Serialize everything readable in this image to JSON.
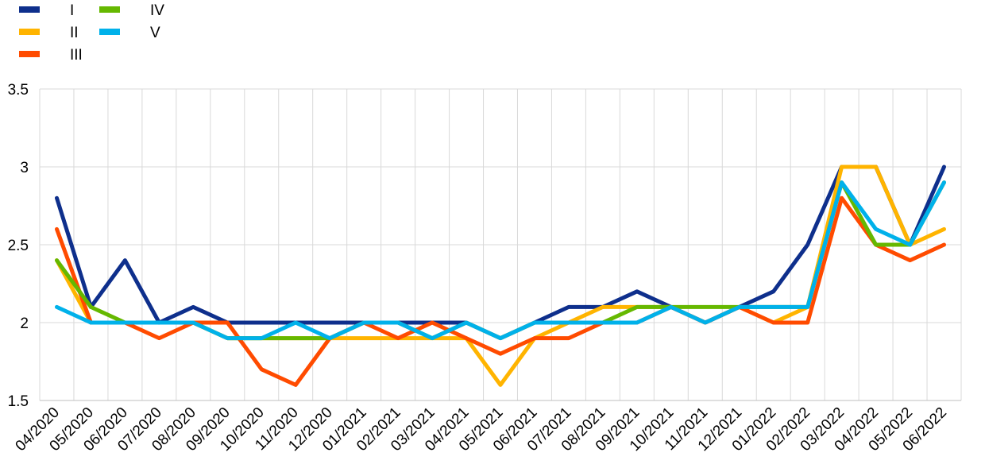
{
  "chart_data": {
    "type": "line",
    "title": "",
    "xlabel": "",
    "ylabel": "",
    "ylim": [
      1.5,
      3.5
    ],
    "yticks": [
      "1.5",
      "2",
      "2.5",
      "3",
      "3.5"
    ],
    "ytick_values": [
      1.5,
      2,
      2.5,
      3,
      3.5
    ],
    "grid": true,
    "legend_position": "top-left",
    "categories": [
      "04/2020",
      "05/2020",
      "06/2020",
      "07/2020",
      "08/2020",
      "09/2020",
      "10/2020",
      "11/2020",
      "12/2020",
      "01/2021",
      "02/2021",
      "03/2021",
      "04/2021",
      "05/2021",
      "06/2021",
      "07/2021",
      "08/2021",
      "09/2021",
      "10/2021",
      "11/2021",
      "12/2021",
      "01/2022",
      "02/2022",
      "03/2022",
      "04/2022",
      "05/2022",
      "06/2022"
    ],
    "series": [
      {
        "name": "I",
        "color": "#0e2f8c",
        "values": [
          2.8,
          2.1,
          2.4,
          2.0,
          2.1,
          2.0,
          2.0,
          2.0,
          2.0,
          2.0,
          2.0,
          2.0,
          2.0,
          1.9,
          2.0,
          2.1,
          2.1,
          2.2,
          2.1,
          2.0,
          2.1,
          2.2,
          2.5,
          3.0,
          3.0,
          2.5,
          3.0
        ]
      },
      {
        "name": "II",
        "color": "#ffb400",
        "values": [
          2.4,
          2.0,
          2.0,
          2.0,
          2.0,
          1.9,
          1.9,
          1.9,
          1.9,
          1.9,
          1.9,
          1.9,
          1.9,
          1.6,
          1.9,
          2.0,
          2.1,
          2.1,
          2.1,
          2.0,
          2.1,
          2.0,
          2.1,
          3.0,
          3.0,
          2.5,
          2.6
        ]
      },
      {
        "name": "III",
        "color": "#ff4b00",
        "values": [
          2.6,
          2.0,
          2.0,
          1.9,
          2.0,
          2.0,
          1.7,
          1.6,
          1.9,
          2.0,
          1.9,
          2.0,
          1.9,
          1.8,
          1.9,
          1.9,
          2.0,
          2.0,
          2.1,
          2.0,
          2.1,
          2.0,
          2.0,
          2.8,
          2.5,
          2.4,
          2.5
        ]
      },
      {
        "name": "IV",
        "color": "#65b800",
        "values": [
          2.4,
          2.1,
          2.0,
          2.0,
          2.0,
          1.9,
          1.9,
          1.9,
          1.9,
          2.0,
          2.0,
          1.9,
          2.0,
          1.9,
          2.0,
          2.0,
          2.0,
          2.1,
          2.1,
          2.1,
          2.1,
          2.1,
          2.1,
          2.9,
          2.5,
          2.5,
          2.9
        ]
      },
      {
        "name": "V",
        "color": "#00b1ea",
        "values": [
          2.1,
          2.0,
          2.0,
          2.0,
          2.0,
          1.9,
          1.9,
          2.0,
          1.9,
          2.0,
          2.0,
          1.9,
          2.0,
          1.9,
          2.0,
          2.0,
          2.0,
          2.0,
          2.1,
          2.0,
          2.1,
          2.1,
          2.1,
          2.9,
          2.6,
          2.5,
          2.9
        ]
      }
    ]
  }
}
